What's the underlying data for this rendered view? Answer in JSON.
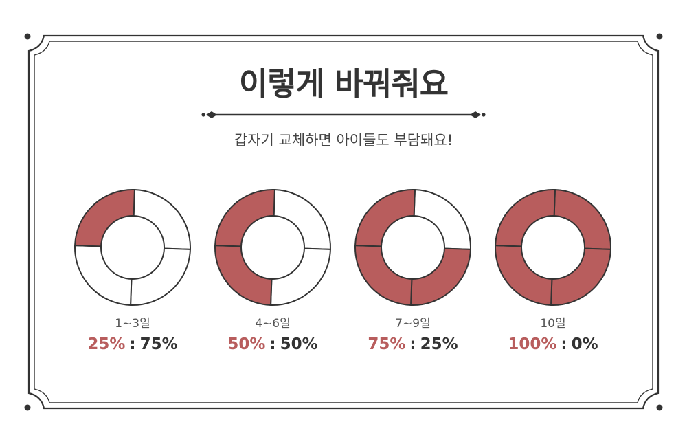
{
  "header": {
    "title": "이렇게 바꿔줘요",
    "subtitle": "갑자기 교체하면 아이들도 부담돼요!"
  },
  "colors": {
    "accent": "#b85d5d",
    "stroke": "#333333",
    "empty": "#ffffff"
  },
  "chart_data": {
    "type": "pie",
    "style": "donut",
    "segments_per_chart": 4,
    "charts": [
      {
        "period": "1~3일",
        "new_pct": 25,
        "old_pct": 75,
        "new_label": "25%",
        "old_label": "75%"
      },
      {
        "period": "4~6일",
        "new_pct": 50,
        "old_pct": 50,
        "new_label": "50%",
        "old_label": "50%"
      },
      {
        "period": "7~9일",
        "new_pct": 75,
        "old_pct": 25,
        "new_label": "75%",
        "old_label": "25%"
      },
      {
        "period": "10일",
        "new_pct": 100,
        "old_pct": 0,
        "new_label": "100%",
        "old_label": "0%"
      }
    ],
    "separator": ":"
  }
}
